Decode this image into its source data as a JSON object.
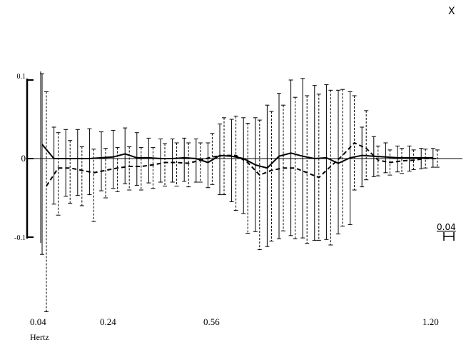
{
  "chart_data": {
    "type": "line",
    "corner_label": "X",
    "y_ticks": [
      {
        "value": 0.1,
        "label": "0.1"
      },
      {
        "value": 0,
        "label": "0"
      },
      {
        "value": -0.1,
        "label": "-0.1"
      }
    ],
    "ylim": [
      -0.1,
      0.1
    ],
    "x_tick_labels": [
      "0.04",
      "0.24",
      "0.56",
      "1.20"
    ],
    "x_unit_label": "Hertz",
    "scale_bar_label": "0.04",
    "grid": false,
    "series": [
      {
        "style": "solid",
        "color": "#000000",
        "values": [
          0.018,
          0.0,
          0.0,
          0.0,
          0.0,
          0.001,
          0.002,
          0.006,
          0.001,
          0.001,
          0.0,
          0.0,
          0.001,
          0.0,
          -0.005,
          0.004,
          0.003,
          0.0,
          -0.008,
          -0.012,
          0.003,
          0.007,
          0.003,
          0.0,
          0.001,
          -0.006,
          0.001,
          0.004,
          0.003,
          0.002,
          0.001,
          0.001,
          0.001,
          0.001
        ],
        "error_up": [
          0.09,
          0.04,
          0.037,
          0.037,
          0.038,
          0.033,
          0.034,
          0.033,
          0.032,
          0.025,
          0.025,
          0.025,
          0.025,
          0.025,
          0.025,
          0.04,
          0.047,
          0.052,
          0.06,
          0.08,
          0.08,
          0.093,
          0.099,
          0.093,
          0.093,
          0.093,
          0.084,
          0.036,
          0.025,
          0.018,
          0.015,
          0.015,
          0.012,
          0.012
        ],
        "error_down": [
          0.14,
          0.058,
          0.048,
          0.047,
          0.046,
          0.042,
          0.04,
          0.038,
          0.035,
          0.032,
          0.03,
          0.03,
          0.03,
          0.03,
          0.032,
          0.05,
          0.058,
          0.07,
          0.085,
          0.1,
          0.105,
          0.105,
          0.104,
          0.104,
          0.104,
          0.09,
          0.085,
          0.04,
          0.026,
          0.02,
          0.018,
          0.017,
          0.014,
          0.012
        ]
      },
      {
        "style": "dashed",
        "color": "#000000",
        "values": [
          -0.035,
          -0.012,
          -0.012,
          -0.015,
          -0.018,
          -0.015,
          -0.012,
          -0.01,
          -0.01,
          -0.008,
          -0.005,
          -0.005,
          -0.006,
          -0.002,
          0.002,
          0.004,
          0.004,
          -0.005,
          -0.021,
          -0.015,
          -0.012,
          -0.012,
          -0.018,
          -0.024,
          -0.01,
          0.004,
          0.02,
          0.013,
          -0.002,
          -0.005,
          -0.003,
          -0.002,
          0.0,
          0.0
        ],
        "error_up": [
          0.12,
          0.045,
          0.035,
          0.03,
          0.03,
          0.028,
          0.026,
          0.025,
          0.024,
          0.022,
          0.024,
          0.025,
          0.026,
          0.022,
          0.03,
          0.048,
          0.05,
          0.05,
          0.07,
          0.075,
          0.08,
          0.09,
          0.098,
          0.106,
          0.097,
          0.084,
          0.06,
          0.048,
          0.018,
          0.016,
          0.016,
          0.013,
          0.012,
          0.011
        ],
        "error_down": [
          0.16,
          0.06,
          0.045,
          0.045,
          0.062,
          0.035,
          0.03,
          0.03,
          0.03,
          0.03,
          0.03,
          0.03,
          0.03,
          0.028,
          0.035,
          0.05,
          0.07,
          0.09,
          0.095,
          0.09,
          0.08,
          0.09,
          0.09,
          0.08,
          0.1,
          0.09,
          0.06,
          0.04,
          0.02,
          0.016,
          0.016,
          0.012,
          0.012,
          0.011
        ]
      }
    ]
  }
}
